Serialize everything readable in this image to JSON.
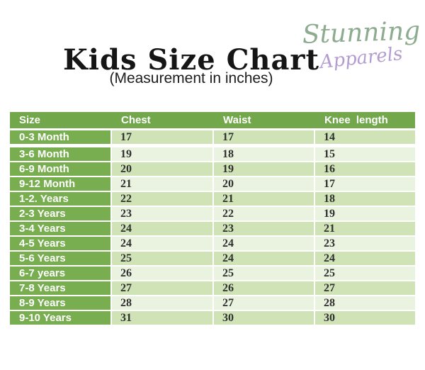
{
  "header": {
    "title": "Kids Size Chart",
    "subtitle": "(Measurement in inches)",
    "logo": {
      "line1": "Stunning",
      "line2": "Apparels"
    }
  },
  "colors": {
    "table_header_green": "#72a84b",
    "size_column_green": "#78ae50",
    "row_fill_dark": "#cfe3b6",
    "row_fill_light": "#eaf2e0",
    "logo_green": "#8dab8e",
    "logo_purple": "#b39cd0",
    "title_black": "#151515",
    "value_text": "#303030"
  },
  "chart_data": {
    "type": "table",
    "title": "Kids Size Chart",
    "subtitle": "(Measurement in inches)",
    "unit": "inches",
    "columns": [
      "Size",
      "Chest",
      "Waist",
      "Knee length"
    ],
    "rows": [
      [
        "0-3 Month",
        17,
        17,
        14
      ],
      [
        "3-6 Month",
        19,
        18,
        15
      ],
      [
        "6-9 Month",
        20,
        19,
        16
      ],
      [
        "9-12 Month",
        21,
        20,
        17
      ],
      [
        "1-2. Years",
        22,
        21,
        18
      ],
      [
        "2-3 Years",
        23,
        22,
        19
      ],
      [
        "3-4 Years",
        24,
        23,
        21
      ],
      [
        "4-5 Years",
        24,
        24,
        23
      ],
      [
        "5-6 Years",
        25,
        24,
        24
      ],
      [
        "6-7 years",
        26,
        25,
        25
      ],
      [
        "7-8 Years",
        27,
        26,
        27
      ],
      [
        "8-9 Years",
        28,
        27,
        28
      ],
      [
        "9-10 Years",
        31,
        30,
        30
      ]
    ],
    "layout": {
      "header_row_style": "solid green band, white bold text",
      "first_column_style": "green cells, white bold text",
      "body_style": "alternating light green rows starting dark",
      "grid": "white separators"
    }
  }
}
